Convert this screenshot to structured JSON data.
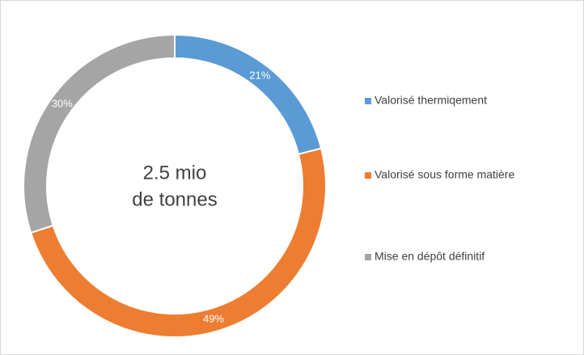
{
  "chart_data": {
    "type": "donut",
    "center_text": [
      "2.5 mio",
      "de tonnes"
    ],
    "categories": [
      "Valorisé thermiqement",
      "Valorisé sous forme matière",
      "Mise en dépôt définitif"
    ],
    "values": [
      21,
      49,
      30
    ],
    "value_labels": [
      "21%",
      "49%",
      "30%"
    ],
    "colors": [
      "#5b9bd5",
      "#ed7d31",
      "#a5a5a5"
    ],
    "legend": "right"
  }
}
